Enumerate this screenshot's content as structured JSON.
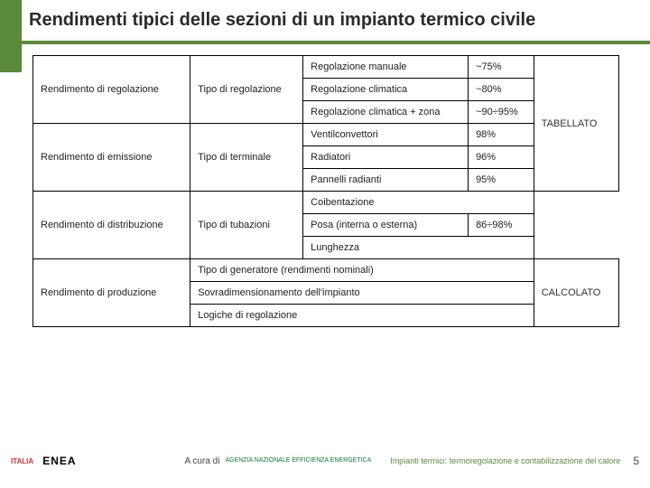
{
  "colors": {
    "accent_green": "#5a8a3a",
    "text": "#222222",
    "border": "#000000",
    "background": "#ffffff"
  },
  "title": "Rendimenti tipici delle sezioni di un impianto termico civile",
  "table": {
    "rows": [
      {
        "c0": "",
        "c1": "Regolazione manuale",
        "c2": "~75%"
      },
      {
        "c0": "Tipo di regolazione",
        "c1": "Regolazione climatica",
        "c2": "~80%",
        "left": "Rendimento di regolazione"
      },
      {
        "c0": "",
        "c1": "Regolazione climatica + zona",
        "c2": "~90÷95%"
      },
      {
        "c0": "",
        "c1": "Ventilconvettori",
        "c2": "98%"
      },
      {
        "c0": "Tipo di terminale",
        "c1": "Radiatori",
        "c2": "96%",
        "left": "Rendimento di emissione",
        "note": "TABELLATO"
      },
      {
        "c0": "",
        "c1": "Pannelli radianti",
        "c2": "95%"
      },
      {
        "c0": "",
        "c1": "Coibentazione",
        "c2": ""
      },
      {
        "c0": "Tipo di tubazioni",
        "c1": "Posa (interna o esterna)",
        "c2": "86÷98%",
        "left": "Rendimento di distribuzione"
      },
      {
        "c0": "",
        "c1": "Lunghezza",
        "c2": ""
      },
      {
        "span": "Tipo di generatore (rendimenti nominali)"
      },
      {
        "span": "Sovradimensionamento dell'impianto",
        "left": "Rendimento di produzione",
        "note": "CALCOLATO"
      },
      {
        "span": "Logiche di regolazione"
      }
    ]
  },
  "footer": {
    "logos": {
      "italia": "ITALIA",
      "enea": "ENEA"
    },
    "a_cura_di": "A cura di",
    "agency": "AGENZIA NAZIONALE EFFICIENZA ENERGETICA",
    "caption": "Impianti termici: termoregolazione e contabilizzazione del calore",
    "page": "5"
  }
}
